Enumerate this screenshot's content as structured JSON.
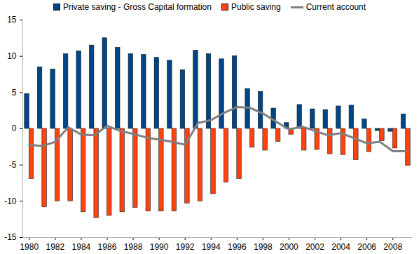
{
  "chart_data": {
    "type": "bar",
    "categories": [
      "1980",
      null,
      "1982",
      null,
      "1984",
      null,
      "1986",
      null,
      "1988",
      null,
      "1990",
      null,
      "1992",
      null,
      "1994",
      null,
      "1996",
      null,
      "1998",
      null,
      "2000",
      null,
      "2002",
      null,
      "2004",
      null,
      "2006",
      null,
      "2008",
      null
    ],
    "series": [
      {
        "name": "Private saving - Gross Capital formation",
        "color": "#004586",
        "type": "bar",
        "values": [
          4.8,
          8.5,
          8.2,
          10.3,
          10.7,
          11.5,
          12.5,
          11.2,
          10.3,
          10.2,
          9.8,
          9.4,
          8.1,
          10.8,
          10.3,
          9.6,
          10.0,
          5.5,
          5.1,
          2.8,
          0.8,
          3.3,
          2.7,
          2.6,
          3.1,
          3.2,
          1.3,
          -0.3,
          -0.4,
          2.0
        ]
      },
      {
        "name": "Public saving",
        "color": "#ff420e",
        "type": "bar",
        "values": [
          -6.9,
          -10.8,
          -10.0,
          -10.0,
          -11.5,
          -12.3,
          -12.0,
          -11.5,
          -10.9,
          -11.4,
          -11.4,
          -11.4,
          -10.3,
          -10.0,
          -9.0,
          -7.4,
          -6.9,
          -2.6,
          -3.0,
          -1.8,
          -0.8,
          -3.0,
          -2.9,
          -3.5,
          -3.6,
          -4.3,
          -3.2,
          -1.7,
          -2.7,
          -5.1
        ]
      },
      {
        "name": "Current account",
        "color": "#808080",
        "type": "line",
        "values": [
          -2.2,
          -2.4,
          -1.8,
          0.2,
          -0.8,
          -0.9,
          0.4,
          -0.3,
          -0.7,
          -1.2,
          -1.5,
          -1.8,
          -2.2,
          0.8,
          1.2,
          2.2,
          3.0,
          2.9,
          2.1,
          1.0,
          -0.1,
          0.3,
          -0.3,
          -0.9,
          -0.6,
          -1.3,
          -2.0,
          -1.8,
          -3.1,
          -3.1
        ]
      }
    ],
    "ylim": [
      -15,
      15
    ],
    "yticks": [
      -15,
      -10,
      -5,
      0,
      5,
      10,
      15
    ],
    "grid": false,
    "legend": "top"
  }
}
